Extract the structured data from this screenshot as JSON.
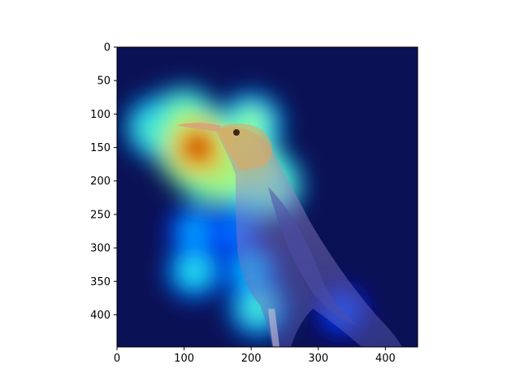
{
  "chart_data": {
    "type": "heatmap",
    "title": "",
    "xlabel": "",
    "ylabel": "",
    "xlim": [
      0,
      448
    ],
    "ylim": [
      448,
      0
    ],
    "x_ticks": [
      0,
      100,
      200,
      300,
      400
    ],
    "y_ticks": [
      0,
      50,
      100,
      150,
      200,
      250,
      300,
      350,
      400
    ],
    "x_tick_labels": [
      "0",
      "100",
      "200",
      "300",
      "400"
    ],
    "y_tick_labels": [
      "0",
      "50",
      "100",
      "150",
      "200",
      "250",
      "300",
      "350",
      "400"
    ],
    "colormap": "jet",
    "underlying_image": "bird-photo",
    "hotspots": [
      {
        "x": 120,
        "y": 150,
        "intensity": 1.0
      },
      {
        "x": 145,
        "y": 175,
        "intensity": 0.95
      },
      {
        "x": 100,
        "y": 110,
        "intensity": 0.7
      },
      {
        "x": 190,
        "y": 180,
        "intensity": 0.85
      },
      {
        "x": 200,
        "y": 115,
        "intensity": 0.6
      },
      {
        "x": 60,
        "y": 120,
        "intensity": 0.6
      },
      {
        "x": 225,
        "y": 205,
        "intensity": 0.7
      },
      {
        "x": 115,
        "y": 335,
        "intensity": 0.45
      },
      {
        "x": 200,
        "y": 335,
        "intensity": 0.4
      },
      {
        "x": 210,
        "y": 390,
        "intensity": 0.5
      },
      {
        "x": 115,
        "y": 275,
        "intensity": 0.35
      },
      {
        "x": 175,
        "y": 275,
        "intensity": 0.3
      },
      {
        "x": 335,
        "y": 395,
        "intensity": 0.25
      }
    ],
    "grid": false,
    "legend": false
  },
  "colors": {
    "background": "#ffffff",
    "cold": "#0b1155",
    "axis": "#000000"
  }
}
